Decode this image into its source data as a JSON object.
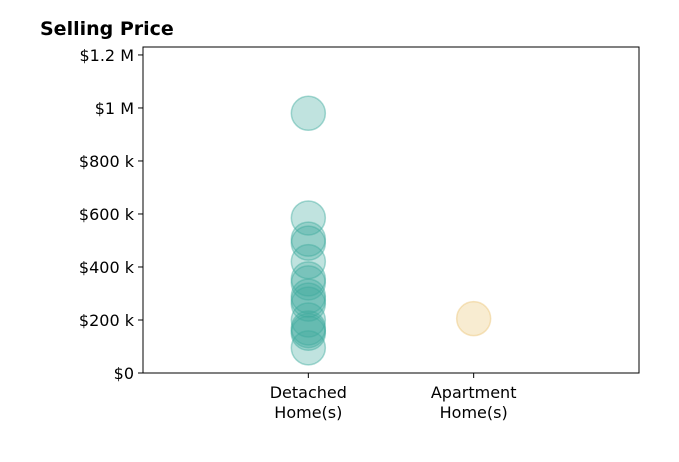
{
  "chart_data": {
    "type": "scatter",
    "title": "Selling Price",
    "xlabel": "",
    "ylabel": "",
    "categories": [
      {
        "key": "detached",
        "lines": [
          "Detached",
          "Home(s)"
        ]
      },
      {
        "key": "apartment",
        "lines": [
          "Apartment",
          "Home(s)"
        ]
      }
    ],
    "y_ticks": [
      {
        "value": 0,
        "label": "$0"
      },
      {
        "value": 200000,
        "label": "$200 k"
      },
      {
        "value": 400000,
        "label": "$400 k"
      },
      {
        "value": 600000,
        "label": "$600 k"
      },
      {
        "value": 800000,
        "label": "$800 k"
      },
      {
        "value": 1000000,
        "label": "$1 M"
      },
      {
        "value": 1200000,
        "label": "$1.2 M"
      }
    ],
    "ylim": [
      0,
      1230000
    ],
    "x_range": [
      -1,
      2
    ],
    "grid": false,
    "legend": "none",
    "series": [
      {
        "category": "detached",
        "color": "#3fab9e",
        "values": [
          980000,
          585000,
          505000,
          490000,
          420000,
          355000,
          340000,
          290000,
          275000,
          260000,
          200000,
          170000,
          160000,
          150000,
          95000
        ]
      },
      {
        "category": "apartment",
        "color": "#ebc474",
        "values": [
          205000
        ]
      }
    ]
  }
}
